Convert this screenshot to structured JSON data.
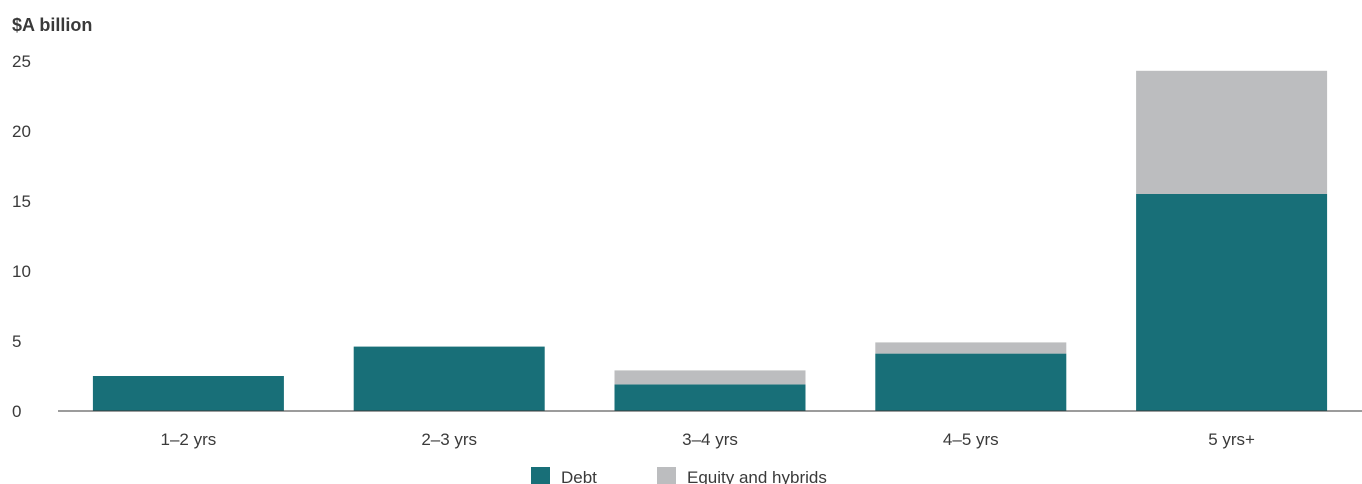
{
  "chart_data": {
    "type": "bar",
    "stacked": true,
    "unit_label": "$A billion",
    "categories": [
      "1–2 yrs",
      "2–3 yrs",
      "3–4 yrs",
      "4–5 yrs",
      "5 yrs+"
    ],
    "series": [
      {
        "name": "Debt",
        "values": [
          2.5,
          4.6,
          1.9,
          4.1,
          15.5
        ],
        "color": "#186f78"
      },
      {
        "name": "Equity and hybrids",
        "values": [
          0.0,
          0.0,
          1.0,
          0.8,
          8.8
        ],
        "color": "#bcbdbf"
      }
    ],
    "y_ticks": [
      0,
      5,
      10,
      15,
      20,
      25
    ],
    "ylim": [
      0,
      25
    ],
    "grid": false,
    "legend_position": "bottom"
  }
}
